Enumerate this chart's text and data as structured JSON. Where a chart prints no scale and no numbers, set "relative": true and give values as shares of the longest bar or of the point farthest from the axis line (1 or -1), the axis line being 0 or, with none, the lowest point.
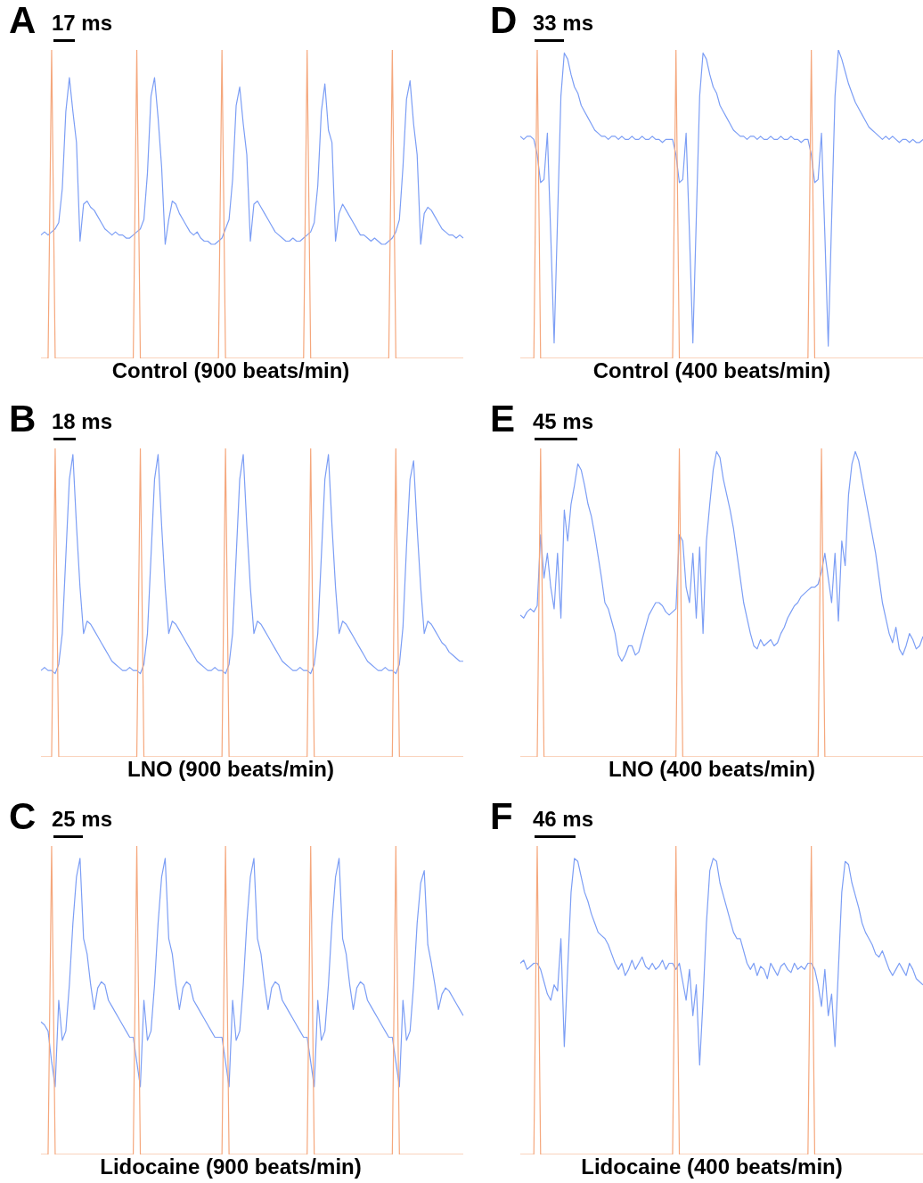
{
  "chart_data": [
    {
      "type": "line",
      "title": "A",
      "annotations": [
        "17 ms"
      ],
      "xlabel": "Control (900 beats/min)",
      "relative": true,
      "marker": "none",
      "line_style": "solid",
      "categories": [
        null,
        null,
        null,
        null,
        null,
        null,
        null,
        null,
        null,
        null,
        null,
        null,
        null,
        null,
        null,
        null,
        null,
        null,
        null,
        null,
        null,
        null,
        null,
        null,
        null,
        null,
        null,
        null,
        null,
        null,
        null,
        null,
        null,
        null,
        null,
        null,
        null,
        null,
        null,
        null,
        null,
        null,
        null,
        null,
        null,
        null,
        null,
        null,
        null,
        null,
        null,
        null,
        null,
        null,
        null,
        null,
        null,
        null,
        null,
        null,
        null,
        null,
        null,
        null,
        null,
        null,
        null,
        null,
        null,
        null,
        null,
        null,
        null,
        null,
        null,
        null,
        null,
        null,
        null,
        null,
        null,
        null,
        null,
        null,
        null,
        null,
        null,
        null,
        null,
        null,
        null,
        null,
        null,
        null,
        null,
        null,
        null,
        null,
        null,
        null,
        null,
        null,
        null,
        null,
        null,
        null,
        null,
        null,
        null,
        null,
        null,
        null,
        null,
        null,
        null,
        null,
        null,
        null,
        null,
        null
      ],
      "series": [
        {
          "color": "#f5a77c",
          "values": [
            0,
            0,
            0,
            1,
            0,
            0,
            0,
            0,
            0,
            0,
            0,
            0,
            0,
            0,
            0,
            0,
            0,
            0,
            0,
            0,
            0,
            0,
            0,
            0,
            0,
            0,
            0,
            1,
            0,
            0,
            0,
            0,
            0,
            0,
            0,
            0,
            0,
            0,
            0,
            0,
            0,
            0,
            0,
            0,
            0,
            0,
            0,
            0,
            0,
            0,
            0,
            1,
            0,
            0,
            0,
            0,
            0,
            0,
            0,
            0,
            0,
            0,
            0,
            0,
            0,
            0,
            0,
            0,
            0,
            0,
            0,
            0,
            0,
            0,
            0,
            1,
            0,
            0,
            0,
            0,
            0,
            0,
            0,
            0,
            0,
            0,
            0,
            0,
            0,
            0,
            0,
            0,
            0,
            0,
            0,
            0,
            0,
            0,
            0,
            1,
            0,
            0,
            0,
            0,
            0,
            0,
            0,
            0,
            0,
            0,
            0,
            0,
            0,
            0,
            0,
            0,
            0,
            0,
            0,
            0
          ]
        },
        {
          "color": "#7c9ef5",
          "values": [
            0.4,
            0.41,
            0.4,
            0.41,
            0.42,
            0.44,
            0.55,
            0.8,
            0.91,
            0.8,
            0.7,
            0.38,
            0.5,
            0.51,
            0.49,
            0.48,
            0.46,
            0.44,
            0.42,
            0.41,
            0.4,
            0.41,
            0.4,
            0.4,
            0.39,
            0.39,
            0.4,
            0.41,
            0.42,
            0.45,
            0.6,
            0.85,
            0.91,
            0.78,
            0.62,
            0.37,
            0.45,
            0.51,
            0.5,
            0.47,
            0.45,
            0.43,
            0.41,
            0.4,
            0.41,
            0.39,
            0.38,
            0.38,
            0.37,
            0.37,
            0.38,
            0.39,
            0.42,
            0.45,
            0.58,
            0.82,
            0.88,
            0.76,
            0.66,
            0.38,
            0.5,
            0.51,
            0.49,
            0.47,
            0.45,
            0.43,
            0.41,
            0.4,
            0.39,
            0.38,
            0.38,
            0.39,
            0.38,
            0.38,
            0.39,
            0.4,
            0.41,
            0.44,
            0.56,
            0.8,
            0.89,
            0.74,
            0.7,
            0.38,
            0.47,
            0.5,
            0.48,
            0.46,
            0.44,
            0.42,
            0.4,
            0.4,
            0.39,
            0.38,
            0.39,
            0.38,
            0.37,
            0.37,
            0.38,
            0.39,
            0.41,
            0.45,
            0.62,
            0.84,
            0.9,
            0.76,
            0.66,
            0.37,
            0.47,
            0.49,
            0.48,
            0.46,
            0.44,
            0.42,
            0.41,
            0.4,
            0.4,
            0.39,
            0.4,
            0.39
          ]
        }
      ]
    },
    {
      "type": "line",
      "title": "D",
      "annotations": [
        "33 ms"
      ],
      "xlabel": "Control (400 beats/min)",
      "relative": true,
      "marker": "none",
      "line_style": "solid",
      "categories": [
        null,
        null,
        null,
        null,
        null,
        null,
        null,
        null,
        null,
        null,
        null,
        null,
        null,
        null,
        null,
        null,
        null,
        null,
        null,
        null,
        null,
        null,
        null,
        null,
        null,
        null,
        null,
        null,
        null,
        null,
        null,
        null,
        null,
        null,
        null,
        null,
        null,
        null,
        null,
        null,
        null,
        null,
        null,
        null,
        null,
        null,
        null,
        null,
        null,
        null,
        null,
        null,
        null,
        null,
        null,
        null,
        null,
        null,
        null,
        null,
        null,
        null,
        null,
        null,
        null,
        null,
        null,
        null,
        null,
        null,
        null,
        null,
        null,
        null,
        null,
        null,
        null,
        null,
        null,
        null,
        null,
        null,
        null,
        null,
        null,
        null,
        null,
        null,
        null,
        null,
        null,
        null,
        null,
        null,
        null,
        null,
        null,
        null,
        null,
        null,
        null,
        null,
        null,
        null,
        null,
        null,
        null,
        null,
        null,
        null,
        null,
        null,
        null,
        null,
        null,
        null,
        null,
        null,
        null,
        null
      ],
      "series": [
        {
          "color": "#f5a77c",
          "values": [
            0,
            0,
            0,
            0,
            0,
            1,
            0,
            0,
            0,
            0,
            0,
            0,
            0,
            0,
            0,
            0,
            0,
            0,
            0,
            0,
            0,
            0,
            0,
            0,
            0,
            0,
            0,
            0,
            0,
            0,
            0,
            0,
            0,
            0,
            0,
            0,
            0,
            0,
            0,
            0,
            0,
            0,
            0,
            0,
            0,
            0,
            1,
            0,
            0,
            0,
            0,
            0,
            0,
            0,
            0,
            0,
            0,
            0,
            0,
            0,
            0,
            0,
            0,
            0,
            0,
            0,
            0,
            0,
            0,
            0,
            0,
            0,
            0,
            0,
            0,
            0,
            0,
            0,
            0,
            0,
            0,
            0,
            0,
            0,
            0,
            0,
            1,
            0,
            0,
            0,
            0,
            0,
            0,
            0,
            0,
            0,
            0,
            0,
            0,
            0,
            0,
            0,
            0,
            0,
            0,
            0,
            0,
            0,
            0,
            0,
            0,
            0,
            0,
            0,
            0,
            0,
            0,
            0,
            0,
            0
          ]
        },
        {
          "color": "#7c9ef5",
          "values": [
            0.72,
            0.71,
            0.72,
            0.72,
            0.71,
            0.66,
            0.57,
            0.58,
            0.73,
            0.4,
            0.05,
            0.45,
            0.85,
            0.99,
            0.97,
            0.92,
            0.88,
            0.86,
            0.82,
            0.8,
            0.78,
            0.76,
            0.74,
            0.73,
            0.72,
            0.72,
            0.71,
            0.72,
            0.72,
            0.71,
            0.72,
            0.71,
            0.71,
            0.72,
            0.71,
            0.71,
            0.72,
            0.71,
            0.71,
            0.72,
            0.71,
            0.71,
            0.7,
            0.71,
            0.71,
            0.71,
            0.66,
            0.57,
            0.58,
            0.73,
            0.4,
            0.05,
            0.45,
            0.85,
            0.99,
            0.97,
            0.92,
            0.88,
            0.86,
            0.82,
            0.8,
            0.78,
            0.76,
            0.74,
            0.73,
            0.72,
            0.72,
            0.71,
            0.72,
            0.72,
            0.71,
            0.72,
            0.71,
            0.71,
            0.72,
            0.71,
            0.71,
            0.72,
            0.71,
            0.71,
            0.72,
            0.71,
            0.71,
            0.7,
            0.71,
            0.71,
            0.66,
            0.57,
            0.58,
            0.73,
            0.4,
            0.04,
            0.45,
            0.85,
            1.0,
            0.97,
            0.93,
            0.89,
            0.86,
            0.83,
            0.81,
            0.79,
            0.77,
            0.75,
            0.74,
            0.73,
            0.72,
            0.71,
            0.72,
            0.71,
            0.72,
            0.71,
            0.7,
            0.71,
            0.71,
            0.7,
            0.71,
            0.7,
            0.7,
            0.71
          ]
        }
      ]
    },
    {
      "type": "line",
      "title": "B",
      "annotations": [
        "18 ms"
      ],
      "xlabel": "LNO (900 beats/min)",
      "relative": true,
      "marker": "none",
      "line_style": "solid",
      "categories": [
        null,
        null,
        null,
        null,
        null,
        null,
        null,
        null,
        null,
        null,
        null,
        null,
        null,
        null,
        null,
        null,
        null,
        null,
        null,
        null,
        null,
        null,
        null,
        null,
        null,
        null,
        null,
        null,
        null,
        null,
        null,
        null,
        null,
        null,
        null,
        null,
        null,
        null,
        null,
        null,
        null,
        null,
        null,
        null,
        null,
        null,
        null,
        null,
        null,
        null,
        null,
        null,
        null,
        null,
        null,
        null,
        null,
        null,
        null,
        null,
        null,
        null,
        null,
        null,
        null,
        null,
        null,
        null,
        null,
        null,
        null,
        null,
        null,
        null,
        null,
        null,
        null,
        null,
        null,
        null,
        null,
        null,
        null,
        null,
        null,
        null,
        null,
        null,
        null,
        null,
        null,
        null,
        null,
        null,
        null,
        null,
        null,
        null,
        null,
        null,
        null,
        null,
        null,
        null,
        null,
        null,
        null,
        null,
        null,
        null,
        null,
        null,
        null,
        null,
        null,
        null,
        null,
        null,
        null,
        null
      ],
      "series": [
        {
          "color": "#f5a77c",
          "values": [
            0,
            0,
            0,
            0,
            1,
            0,
            0,
            0,
            0,
            0,
            0,
            0,
            0,
            0,
            0,
            0,
            0,
            0,
            0,
            0,
            0,
            0,
            0,
            0,
            0,
            0,
            0,
            0,
            1,
            0,
            0,
            0,
            0,
            0,
            0,
            0,
            0,
            0,
            0,
            0,
            0,
            0,
            0,
            0,
            0,
            0,
            0,
            0,
            0,
            0,
            0,
            0,
            1,
            0,
            0,
            0,
            0,
            0,
            0,
            0,
            0,
            0,
            0,
            0,
            0,
            0,
            0,
            0,
            0,
            0,
            0,
            0,
            0,
            0,
            0,
            0,
            1,
            0,
            0,
            0,
            0,
            0,
            0,
            0,
            0,
            0,
            0,
            0,
            0,
            0,
            0,
            0,
            0,
            0,
            0,
            0,
            0,
            0,
            0,
            0,
            1,
            0,
            0,
            0,
            0,
            0,
            0,
            0,
            0,
            0,
            0,
            0,
            0,
            0,
            0,
            0,
            0,
            0,
            0,
            0
          ]
        },
        {
          "color": "#7c9ef5",
          "values": [
            0.28,
            0.29,
            0.28,
            0.28,
            0.27,
            0.3,
            0.4,
            0.65,
            0.9,
            0.98,
            0.75,
            0.55,
            0.4,
            0.44,
            0.43,
            0.41,
            0.39,
            0.37,
            0.35,
            0.33,
            0.31,
            0.3,
            0.29,
            0.28,
            0.28,
            0.29,
            0.28,
            0.28,
            0.27,
            0.3,
            0.4,
            0.65,
            0.9,
            0.98,
            0.75,
            0.55,
            0.4,
            0.44,
            0.43,
            0.41,
            0.39,
            0.37,
            0.35,
            0.33,
            0.31,
            0.3,
            0.29,
            0.28,
            0.28,
            0.29,
            0.28,
            0.28,
            0.27,
            0.3,
            0.4,
            0.65,
            0.9,
            0.98,
            0.75,
            0.55,
            0.4,
            0.44,
            0.43,
            0.41,
            0.39,
            0.37,
            0.35,
            0.33,
            0.31,
            0.3,
            0.29,
            0.28,
            0.28,
            0.29,
            0.28,
            0.28,
            0.27,
            0.3,
            0.4,
            0.65,
            0.9,
            0.98,
            0.75,
            0.55,
            0.4,
            0.44,
            0.43,
            0.41,
            0.39,
            0.37,
            0.35,
            0.33,
            0.31,
            0.3,
            0.29,
            0.28,
            0.28,
            0.29,
            0.28,
            0.28,
            0.27,
            0.3,
            0.42,
            0.68,
            0.9,
            0.96,
            0.74,
            0.55,
            0.4,
            0.44,
            0.43,
            0.41,
            0.39,
            0.37,
            0.36,
            0.34,
            0.33,
            0.32,
            0.31,
            0.31
          ]
        }
      ]
    },
    {
      "type": "line",
      "title": "E",
      "annotations": [
        "45 ms"
      ],
      "xlabel": "LNO (400 beats/min)",
      "relative": true,
      "marker": "none",
      "line_style": "solid",
      "categories": [
        null,
        null,
        null,
        null,
        null,
        null,
        null,
        null,
        null,
        null,
        null,
        null,
        null,
        null,
        null,
        null,
        null,
        null,
        null,
        null,
        null,
        null,
        null,
        null,
        null,
        null,
        null,
        null,
        null,
        null,
        null,
        null,
        null,
        null,
        null,
        null,
        null,
        null,
        null,
        null,
        null,
        null,
        null,
        null,
        null,
        null,
        null,
        null,
        null,
        null,
        null,
        null,
        null,
        null,
        null,
        null,
        null,
        null,
        null,
        null,
        null,
        null,
        null,
        null,
        null,
        null,
        null,
        null,
        null,
        null,
        null,
        null,
        null,
        null,
        null,
        null,
        null,
        null,
        null,
        null,
        null,
        null,
        null,
        null,
        null,
        null,
        null,
        null,
        null,
        null,
        null,
        null,
        null,
        null,
        null,
        null,
        null,
        null,
        null,
        null,
        null,
        null,
        null,
        null,
        null,
        null,
        null,
        null,
        null,
        null,
        null,
        null,
        null,
        null,
        null,
        null,
        null,
        null,
        null,
        null
      ],
      "series": [
        {
          "color": "#f5a77c",
          "values": [
            0,
            0,
            0,
            0,
            0,
            0,
            1,
            0,
            0,
            0,
            0,
            0,
            0,
            0,
            0,
            0,
            0,
            0,
            0,
            0,
            0,
            0,
            0,
            0,
            0,
            0,
            0,
            0,
            0,
            0,
            0,
            0,
            0,
            0,
            0,
            0,
            0,
            0,
            0,
            0,
            0,
            0,
            0,
            0,
            0,
            0,
            0,
            1,
            0,
            0,
            0,
            0,
            0,
            0,
            0,
            0,
            0,
            0,
            0,
            0,
            0,
            0,
            0,
            0,
            0,
            0,
            0,
            0,
            0,
            0,
            0,
            0,
            0,
            0,
            0,
            0,
            0,
            0,
            0,
            0,
            0,
            0,
            0,
            0,
            0,
            0,
            0,
            0,
            0,
            1,
            0,
            0,
            0,
            0,
            0,
            0,
            0,
            0,
            0,
            0,
            0,
            0,
            0,
            0,
            0,
            0,
            0,
            0,
            0,
            0,
            0,
            0,
            0,
            0,
            0,
            0,
            0,
            0,
            0,
            0
          ]
        },
        {
          "color": "#7c9ef5",
          "values": [
            0.46,
            0.45,
            0.47,
            0.48,
            0.47,
            0.49,
            0.72,
            0.58,
            0.66,
            0.55,
            0.48,
            0.66,
            0.45,
            0.8,
            0.7,
            0.82,
            0.88,
            0.95,
            0.93,
            0.88,
            0.82,
            0.78,
            0.72,
            0.65,
            0.58,
            0.5,
            0.48,
            0.44,
            0.4,
            0.33,
            0.31,
            0.33,
            0.36,
            0.36,
            0.33,
            0.34,
            0.38,
            0.42,
            0.46,
            0.48,
            0.5,
            0.5,
            0.49,
            0.47,
            0.46,
            0.47,
            0.48,
            0.72,
            0.7,
            0.55,
            0.5,
            0.66,
            0.45,
            0.68,
            0.4,
            0.7,
            0.82,
            0.93,
            0.99,
            0.97,
            0.9,
            0.85,
            0.8,
            0.74,
            0.66,
            0.58,
            0.5,
            0.45,
            0.4,
            0.36,
            0.35,
            0.38,
            0.36,
            0.37,
            0.38,
            0.36,
            0.37,
            0.4,
            0.42,
            0.45,
            0.47,
            0.49,
            0.5,
            0.52,
            0.53,
            0.54,
            0.55,
            0.55,
            0.56,
            0.6,
            0.66,
            0.58,
            0.5,
            0.66,
            0.44,
            0.7,
            0.62,
            0.85,
            0.95,
            0.99,
            0.96,
            0.9,
            0.84,
            0.78,
            0.72,
            0.66,
            0.58,
            0.5,
            0.45,
            0.4,
            0.37,
            0.42,
            0.35,
            0.33,
            0.36,
            0.4,
            0.38,
            0.35,
            0.36,
            0.39
          ]
        }
      ]
    },
    {
      "type": "line",
      "title": "C",
      "annotations": [
        "25 ms"
      ],
      "xlabel": "Lidocaine (900 beats/min)",
      "relative": true,
      "marker": "none",
      "line_style": "solid",
      "categories": [
        null,
        null,
        null,
        null,
        null,
        null,
        null,
        null,
        null,
        null,
        null,
        null,
        null,
        null,
        null,
        null,
        null,
        null,
        null,
        null,
        null,
        null,
        null,
        null,
        null,
        null,
        null,
        null,
        null,
        null,
        null,
        null,
        null,
        null,
        null,
        null,
        null,
        null,
        null,
        null,
        null,
        null,
        null,
        null,
        null,
        null,
        null,
        null,
        null,
        null,
        null,
        null,
        null,
        null,
        null,
        null,
        null,
        null,
        null,
        null,
        null,
        null,
        null,
        null,
        null,
        null,
        null,
        null,
        null,
        null,
        null,
        null,
        null,
        null,
        null,
        null,
        null,
        null,
        null,
        null,
        null,
        null,
        null,
        null,
        null,
        null,
        null,
        null,
        null,
        null,
        null,
        null,
        null,
        null,
        null,
        null,
        null,
        null,
        null,
        null,
        null,
        null,
        null,
        null,
        null,
        null,
        null,
        null,
        null,
        null,
        null,
        null,
        null,
        null,
        null,
        null,
        null,
        null,
        null,
        null
      ],
      "series": [
        {
          "color": "#f5a77c",
          "values": [
            0,
            0,
            0,
            1,
            0,
            0,
            0,
            0,
            0,
            0,
            0,
            0,
            0,
            0,
            0,
            0,
            0,
            0,
            0,
            0,
            0,
            0,
            0,
            0,
            0,
            0,
            0,
            1,
            0,
            0,
            0,
            0,
            0,
            0,
            0,
            0,
            0,
            0,
            0,
            0,
            0,
            0,
            0,
            0,
            0,
            0,
            0,
            0,
            0,
            0,
            0,
            0,
            1,
            0,
            0,
            0,
            0,
            0,
            0,
            0,
            0,
            0,
            0,
            0,
            0,
            0,
            0,
            0,
            0,
            0,
            0,
            0,
            0,
            0,
            0,
            0,
            1,
            0,
            0,
            0,
            0,
            0,
            0,
            0,
            0,
            0,
            0,
            0,
            0,
            0,
            0,
            0,
            0,
            0,
            0,
            0,
            0,
            0,
            0,
            0,
            1,
            0,
            0,
            0,
            0,
            0,
            0,
            0,
            0,
            0,
            0,
            0,
            0,
            0,
            0,
            0,
            0,
            0,
            0,
            0
          ]
        },
        {
          "color": "#7c9ef5",
          "values": [
            0.43,
            0.42,
            0.4,
            0.3,
            0.22,
            0.5,
            0.37,
            0.4,
            0.55,
            0.75,
            0.9,
            0.96,
            0.7,
            0.65,
            0.55,
            0.47,
            0.54,
            0.56,
            0.55,
            0.5,
            0.48,
            0.46,
            0.44,
            0.42,
            0.4,
            0.38,
            0.38,
            0.3,
            0.22,
            0.5,
            0.37,
            0.4,
            0.55,
            0.75,
            0.9,
            0.96,
            0.7,
            0.65,
            0.55,
            0.47,
            0.54,
            0.56,
            0.55,
            0.5,
            0.48,
            0.46,
            0.44,
            0.42,
            0.4,
            0.38,
            0.38,
            0.38,
            0.3,
            0.22,
            0.5,
            0.37,
            0.4,
            0.55,
            0.75,
            0.9,
            0.96,
            0.7,
            0.65,
            0.55,
            0.47,
            0.54,
            0.56,
            0.55,
            0.5,
            0.48,
            0.46,
            0.44,
            0.42,
            0.4,
            0.38,
            0.38,
            0.3,
            0.22,
            0.5,
            0.37,
            0.4,
            0.55,
            0.75,
            0.9,
            0.96,
            0.7,
            0.65,
            0.55,
            0.47,
            0.54,
            0.56,
            0.55,
            0.5,
            0.48,
            0.46,
            0.44,
            0.42,
            0.4,
            0.38,
            0.38,
            0.3,
            0.22,
            0.5,
            0.37,
            0.4,
            0.55,
            0.75,
            0.88,
            0.92,
            0.68,
            0.62,
            0.55,
            0.47,
            0.52,
            0.54,
            0.53,
            0.51,
            0.49,
            0.47,
            0.45
          ]
        }
      ]
    },
    {
      "type": "line",
      "title": "F",
      "annotations": [
        "46 ms"
      ],
      "xlabel": "Lidocaine (400 beats/min)",
      "relative": true,
      "marker": "none",
      "line_style": "solid",
      "categories": [
        null,
        null,
        null,
        null,
        null,
        null,
        null,
        null,
        null,
        null,
        null,
        null,
        null,
        null,
        null,
        null,
        null,
        null,
        null,
        null,
        null,
        null,
        null,
        null,
        null,
        null,
        null,
        null,
        null,
        null,
        null,
        null,
        null,
        null,
        null,
        null,
        null,
        null,
        null,
        null,
        null,
        null,
        null,
        null,
        null,
        null,
        null,
        null,
        null,
        null,
        null,
        null,
        null,
        null,
        null,
        null,
        null,
        null,
        null,
        null,
        null,
        null,
        null,
        null,
        null,
        null,
        null,
        null,
        null,
        null,
        null,
        null,
        null,
        null,
        null,
        null,
        null,
        null,
        null,
        null,
        null,
        null,
        null,
        null,
        null,
        null,
        null,
        null,
        null,
        null,
        null,
        null,
        null,
        null,
        null,
        null,
        null,
        null,
        null,
        null,
        null,
        null,
        null,
        null,
        null,
        null,
        null,
        null,
        null,
        null,
        null,
        null,
        null,
        null,
        null,
        null,
        null,
        null,
        null,
        null
      ],
      "series": [
        {
          "color": "#f5a77c",
          "values": [
            0,
            0,
            0,
            0,
            0,
            1,
            0,
            0,
            0,
            0,
            0,
            0,
            0,
            0,
            0,
            0,
            0,
            0,
            0,
            0,
            0,
            0,
            0,
            0,
            0,
            0,
            0,
            0,
            0,
            0,
            0,
            0,
            0,
            0,
            0,
            0,
            0,
            0,
            0,
            0,
            0,
            0,
            0,
            0,
            0,
            0,
            1,
            0,
            0,
            0,
            0,
            0,
            0,
            0,
            0,
            0,
            0,
            0,
            0,
            0,
            0,
            0,
            0,
            0,
            0,
            0,
            0,
            0,
            0,
            0,
            0,
            0,
            0,
            0,
            0,
            0,
            0,
            0,
            0,
            0,
            0,
            0,
            0,
            0,
            0,
            0,
            1,
            0,
            0,
            0,
            0,
            0,
            0,
            0,
            0,
            0,
            0,
            0,
            0,
            0,
            0,
            0,
            0,
            0,
            0,
            0,
            0,
            0,
            0,
            0,
            0,
            0,
            0,
            0,
            0,
            0,
            0,
            0,
            0,
            0
          ]
        },
        {
          "color": "#7c9ef5",
          "values": [
            0.62,
            0.63,
            0.6,
            0.61,
            0.62,
            0.62,
            0.6,
            0.56,
            0.52,
            0.5,
            0.55,
            0.53,
            0.7,
            0.35,
            0.6,
            0.85,
            0.96,
            0.95,
            0.9,
            0.85,
            0.82,
            0.78,
            0.75,
            0.72,
            0.71,
            0.7,
            0.68,
            0.65,
            0.62,
            0.6,
            0.62,
            0.58,
            0.6,
            0.63,
            0.6,
            0.62,
            0.64,
            0.61,
            0.6,
            0.62,
            0.6,
            0.61,
            0.63,
            0.6,
            0.62,
            0.62,
            0.6,
            0.62,
            0.56,
            0.5,
            0.6,
            0.45,
            0.55,
            0.29,
            0.5,
            0.75,
            0.92,
            0.96,
            0.95,
            0.88,
            0.84,
            0.8,
            0.76,
            0.72,
            0.7,
            0.7,
            0.66,
            0.62,
            0.6,
            0.62,
            0.58,
            0.61,
            0.6,
            0.57,
            0.62,
            0.6,
            0.58,
            0.61,
            0.62,
            0.6,
            0.59,
            0.62,
            0.6,
            0.61,
            0.6,
            0.62,
            0.62,
            0.6,
            0.55,
            0.48,
            0.6,
            0.45,
            0.52,
            0.35,
            0.6,
            0.85,
            0.95,
            0.94,
            0.88,
            0.84,
            0.8,
            0.75,
            0.72,
            0.7,
            0.68,
            0.65,
            0.64,
            0.66,
            0.63,
            0.6,
            0.58,
            0.6,
            0.62,
            0.6,
            0.58,
            0.62,
            0.6,
            0.57,
            0.56,
            0.55
          ]
        }
      ]
    }
  ]
}
